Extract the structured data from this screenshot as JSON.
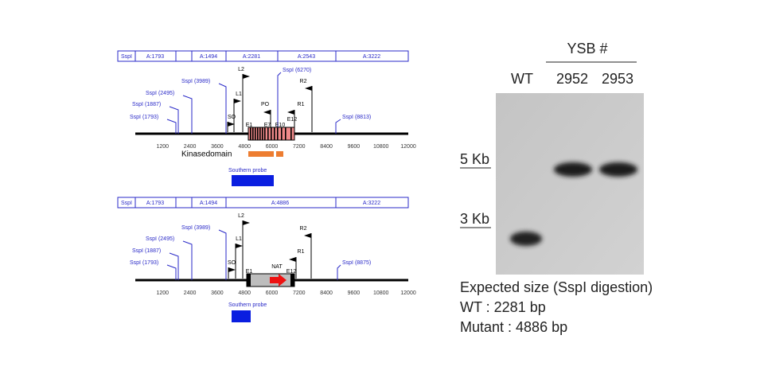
{
  "maps": [
    {
      "fragments": [
        "SspI",
        "A:1793",
        "A:1494",
        "A:2281",
        "A:2543",
        "A:3222"
      ],
      "sites": [
        "SspI (3989)",
        "SspI (2495)",
        "SspI (1887)",
        "SspI (1793)",
        "SspI (6270)",
        "SspI (8813)"
      ],
      "primers": [
        "L2",
        "L1",
        "SO",
        "PO",
        "R2",
        "R1"
      ],
      "exons": [
        "E1",
        "E7",
        "E10",
        "E12"
      ],
      "axis": [
        1200,
        2400,
        3600,
        4800,
        6000,
        7200,
        8400,
        9600,
        10800,
        12000
      ],
      "domain": "Kinasedomain",
      "probe": "Southern probe"
    },
    {
      "fragments": [
        "SspI",
        "A:1793",
        "A:1494",
        "A:4886",
        "A:3222"
      ],
      "sites": [
        "SspI (3989)",
        "SspI (2495)",
        "SspI (1887)",
        "SspI (1793)",
        "SspI (8875)"
      ],
      "primers": [
        "L2",
        "L1",
        "SO",
        "R2",
        "R1"
      ],
      "exons": [
        "E1",
        "E12"
      ],
      "marker": "NAT",
      "axis": [
        1200,
        2400,
        3600,
        4800,
        6000,
        7200,
        8400,
        9600,
        10800,
        12000
      ],
      "probe": "Southern probe"
    }
  ],
  "blot": {
    "group": "YSB #",
    "lanes": [
      "WT",
      "2952",
      "2953"
    ],
    "sizes": [
      "5 Kb",
      "3 Kb"
    ],
    "notes": [
      "Expected size (SspI digestion)",
      "WT : 2281 bp",
      "Mutant : 4886 bp"
    ]
  }
}
